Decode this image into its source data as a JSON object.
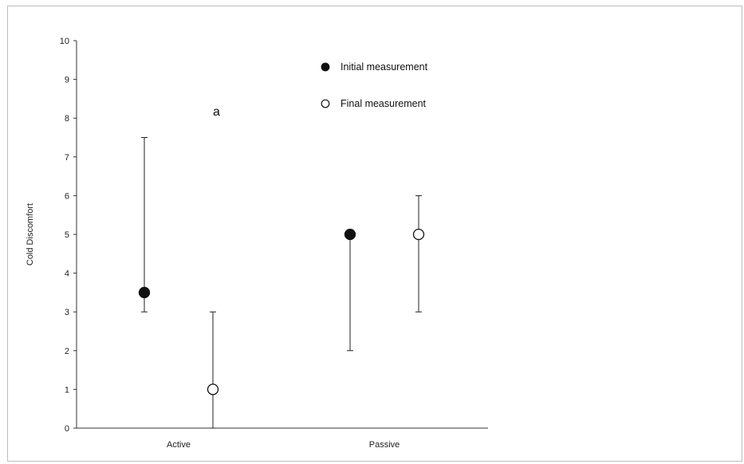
{
  "chart_data": {
    "type": "scatter",
    "title": "",
    "xlabel": "",
    "ylabel": "Cold Discomfort",
    "ylim": [
      0,
      10
    ],
    "yticks": [
      0,
      1,
      2,
      3,
      4,
      5,
      6,
      7,
      8,
      9,
      10
    ],
    "categories": [
      "Active",
      "Passive"
    ],
    "annotation": "a",
    "grid": false,
    "legend_position": "top-center",
    "series": [
      {
        "name": "Initial measurement",
        "marker": "filled-circle",
        "color": "#111111",
        "values": [
          3.5,
          5
        ],
        "error_low": [
          3,
          2
        ],
        "error_high": [
          7.5,
          5
        ]
      },
      {
        "name": "Final measurement",
        "marker": "open-circle",
        "color": "#111111",
        "values": [
          1,
          5
        ],
        "error_low": [
          0,
          3
        ],
        "error_high": [
          3,
          6
        ]
      }
    ]
  }
}
